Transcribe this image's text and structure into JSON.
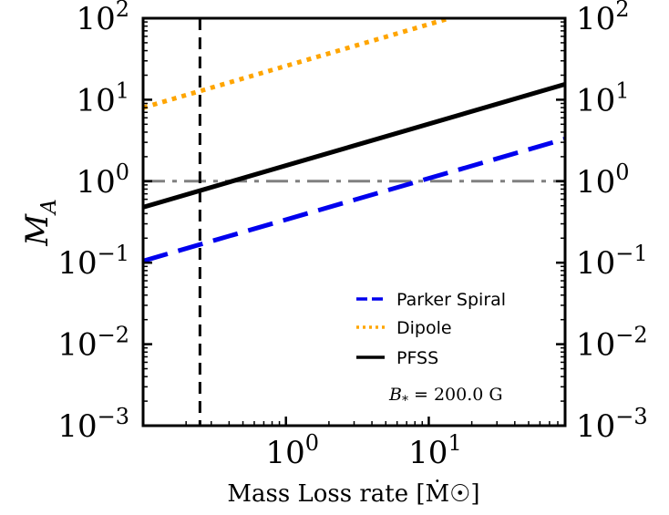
{
  "chart_data": {
    "type": "line",
    "title": "",
    "xlabel": "Mass Loss rate [Ṁ☉]",
    "ylabel": "M_A",
    "xscale": "log",
    "yscale": "log",
    "xlim": [
      0.1,
      90
    ],
    "ylim": [
      0.001,
      100
    ],
    "grid": false,
    "legend_position": "bottom-right",
    "x_ticks": [
      {
        "value": 1,
        "base": "10",
        "exp": "0"
      },
      {
        "value": 10,
        "base": "10",
        "exp": "1"
      }
    ],
    "y_ticks": [
      {
        "value": 0.001,
        "base": "10",
        "exp": "−3"
      },
      {
        "value": 0.01,
        "base": "10",
        "exp": "−2"
      },
      {
        "value": 0.1,
        "base": "10",
        "exp": "−1"
      },
      {
        "value": 1,
        "base": "10",
        "exp": "0"
      },
      {
        "value": 10,
        "base": "10",
        "exp": "1"
      },
      {
        "value": 100,
        "base": "10",
        "exp": "2"
      }
    ],
    "series": [
      {
        "name": "Parker Spiral",
        "style": "dashed",
        "color": "#0000ee",
        "x": [
          0.1,
          90
        ],
        "y": [
          0.105,
          3.3
        ]
      },
      {
        "name": "Dipole",
        "style": "dotted",
        "color": "#ffa500",
        "x": [
          0.1,
          14
        ],
        "y": [
          8.0,
          100
        ]
      },
      {
        "name": "PFSS",
        "style": "solid",
        "color": "#000000",
        "x": [
          0.1,
          90
        ],
        "y": [
          0.48,
          15.5
        ]
      }
    ],
    "reference_lines": [
      {
        "orientation": "horizontal",
        "value": 1.0,
        "style": "dashdot",
        "color": "#808080"
      },
      {
        "orientation": "vertical",
        "value": 0.25,
        "style": "dashed",
        "color": "#000000"
      }
    ],
    "annotation": {
      "symbol": "B",
      "subscript": "*",
      "text": " = 200.0 G"
    }
  }
}
